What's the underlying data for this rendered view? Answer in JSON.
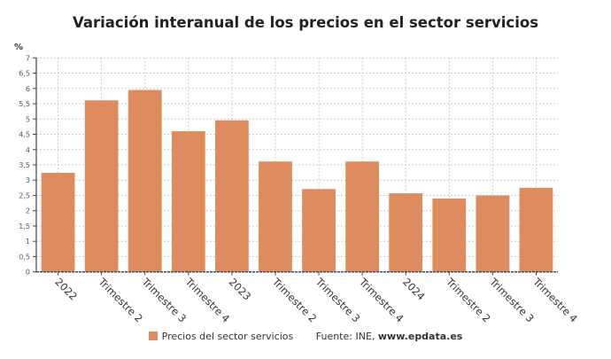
{
  "chart_data": {
    "type": "bar",
    "title": "Variación interanual de los precios en el sector servicios",
    "ylabel": "%",
    "xlabel": "",
    "ylim": [
      0,
      7
    ],
    "yticks": [
      "0",
      "0,5",
      "1",
      "1,5",
      "2",
      "2,5",
      "3",
      "3,5",
      "4",
      "4,5",
      "5",
      "5,5",
      "6",
      "6,5",
      "7"
    ],
    "grid": true,
    "categories": [
      "2022",
      "Trimestre 2",
      "Trimestre 3",
      "Trimestre 4",
      "2023",
      "Trimestre 2",
      "Trimestre 3",
      "Trimestre 4",
      "2024",
      "Trimestre 2",
      "Trimestre 3",
      "Trimestre 4"
    ],
    "series": [
      {
        "name": "Precios del sector servicios",
        "values": [
          3.24,
          5.61,
          5.95,
          4.6,
          4.96,
          3.61,
          2.71,
          3.61,
          2.57,
          2.4,
          2.5,
          2.75
        ]
      }
    ],
    "legend": "bottom",
    "color": "#de8b5f"
  },
  "source": {
    "label": "Fuente: INE, ",
    "site": "www.epdata.es"
  }
}
